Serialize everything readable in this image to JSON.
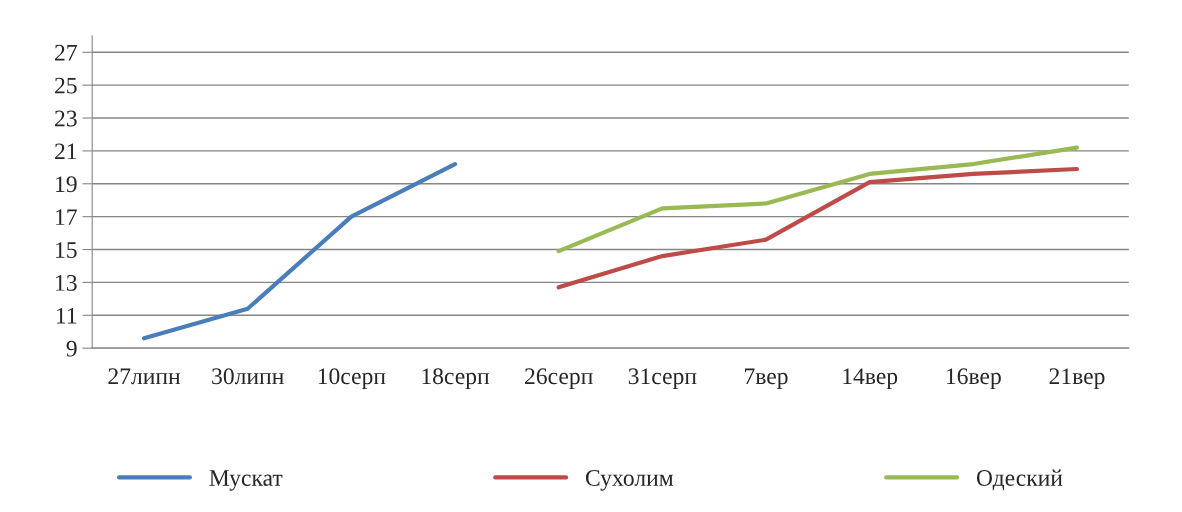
{
  "chart_data": {
    "type": "line",
    "categories": [
      "27липн",
      "30липн",
      "10серп",
      "18серп",
      "26серп",
      "31серп",
      "7вер",
      "14вер",
      "16вер",
      "21вер"
    ],
    "series": [
      {
        "name": "Мускат",
        "color": "#4a7ebb",
        "values": [
          9.6,
          11.4,
          17.0,
          20.2,
          null,
          null,
          null,
          null,
          null,
          null
        ]
      },
      {
        "name": "Сухолим",
        "color": "#be4b48",
        "values": [
          null,
          null,
          null,
          null,
          12.7,
          14.6,
          15.6,
          19.1,
          19.6,
          19.9
        ]
      },
      {
        "name": "Одеский",
        "color": "#98b954",
        "values": [
          null,
          null,
          null,
          null,
          14.9,
          17.5,
          17.8,
          19.6,
          20.2,
          21.2
        ]
      }
    ],
    "ylim": [
      9,
      28
    ],
    "yticks": [
      9,
      11,
      13,
      15,
      17,
      19,
      21,
      23,
      25,
      27
    ],
    "grid": "y",
    "legend": "bottom",
    "marker": "none",
    "line_style": "solid"
  }
}
